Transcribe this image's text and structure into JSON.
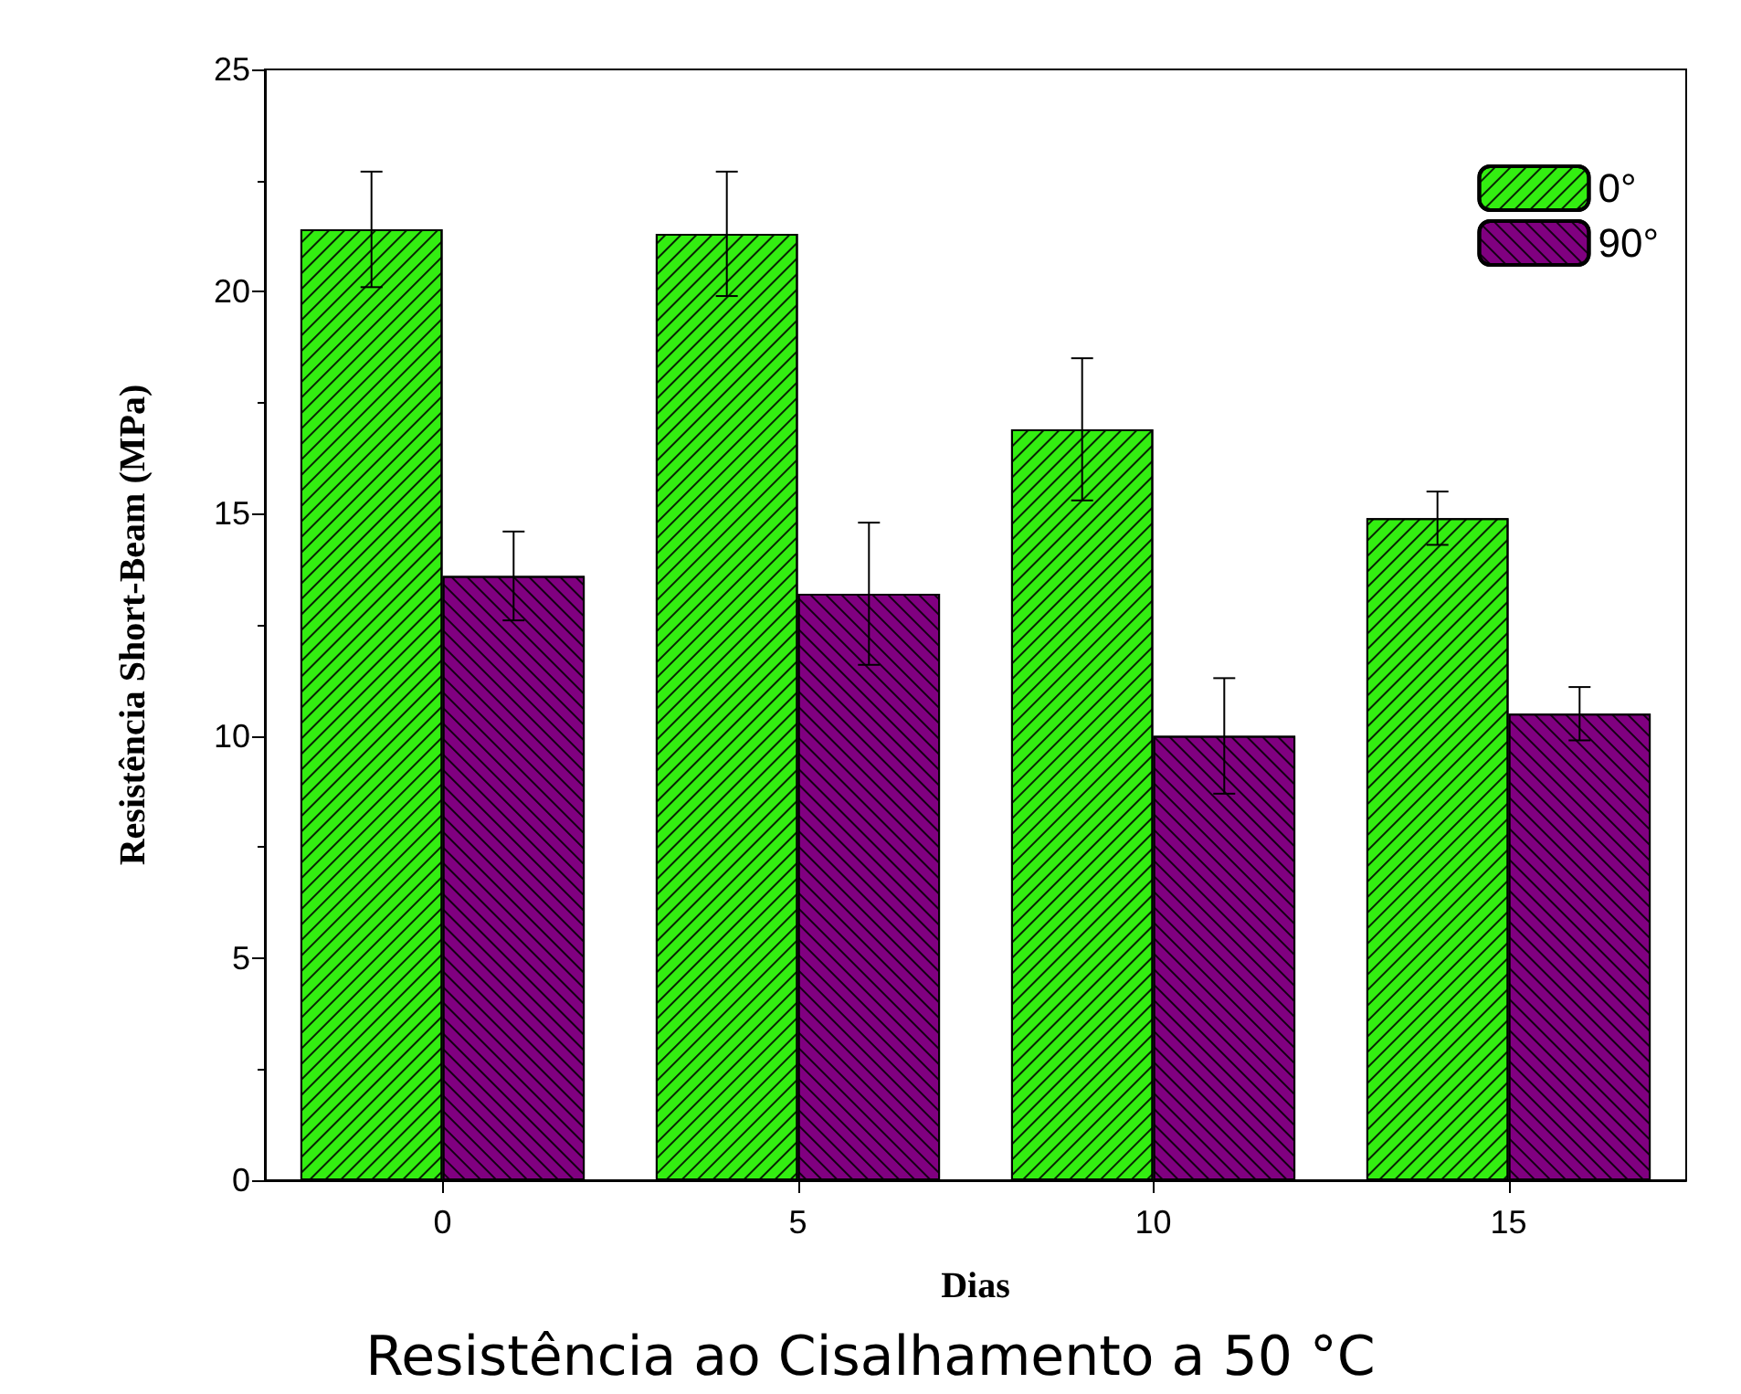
{
  "chart_data": {
    "type": "bar",
    "title": "Resistência ao Cisalhamento a 50 °C",
    "xlabel": "Dias",
    "ylabel": "Resistência Short-Beam (MPa)",
    "categories": [
      "0",
      "5",
      "10",
      "15"
    ],
    "series": [
      {
        "name": "0°",
        "color": "#33ee11",
        "values": [
          21.4,
          21.3,
          16.9,
          14.9
        ],
        "errors": [
          1.3,
          1.4,
          1.6,
          0.6
        ]
      },
      {
        "name": "90°",
        "color": "#800080",
        "values": [
          13.6,
          13.2,
          10.0,
          10.5
        ],
        "errors": [
          1.0,
          1.6,
          1.3,
          0.6
        ]
      }
    ],
    "ylim": [
      0,
      25
    ],
    "yticks": [
      0,
      5,
      10,
      15,
      20,
      25
    ],
    "grid": false,
    "legend": "top right"
  }
}
